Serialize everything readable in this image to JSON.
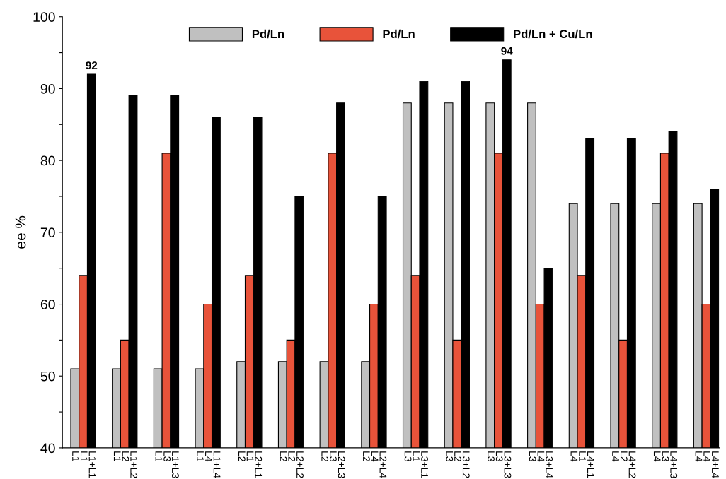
{
  "chart_data": {
    "type": "bar",
    "ylabel": "ee %",
    "categories": [
      "L1",
      "L1",
      "L1+L1",
      null,
      null,
      "L1",
      "L2",
      "L1+L2",
      null,
      null,
      "L1",
      "L3",
      "L1+L3",
      null,
      null,
      "L1",
      "L4",
      "L1+L4",
      null,
      null,
      "L2",
      "L1",
      "L2+L1",
      null,
      null,
      "L2",
      "L2",
      "L2+L2",
      null,
      null,
      "L2",
      "L3",
      "L2+L3",
      null,
      null,
      "L2",
      "L4",
      "L2+L4",
      null,
      null,
      "L3",
      "L1",
      "L3+L1",
      null,
      null,
      "L3",
      "L2",
      "L3+L2",
      null,
      null,
      "L3",
      "L3",
      "L3+L3",
      null,
      null,
      "L3",
      "L4",
      "L3+L4",
      null,
      null,
      "L4",
      "L1",
      "L4+L1",
      null,
      null,
      "L4",
      "L2",
      "L4+L2",
      null,
      null,
      "L4",
      "L3",
      "L4+L3",
      null,
      null,
      "L4",
      "L4",
      "L4+L4"
    ],
    "series": [
      {
        "name": "Pd/Ln",
        "color": "#c0c0c0",
        "values": [
          51,
          null,
          null,
          null,
          null,
          51,
          null,
          null,
          null,
          null,
          51,
          null,
          null,
          null,
          null,
          51,
          null,
          null,
          null,
          null,
          52,
          null,
          null,
          null,
          null,
          52,
          null,
          null,
          null,
          null,
          52,
          null,
          null,
          null,
          null,
          52,
          null,
          null,
          null,
          null,
          88,
          null,
          null,
          null,
          null,
          88,
          null,
          null,
          null,
          null,
          88,
          null,
          null,
          null,
          null,
          88,
          null,
          null,
          null,
          null,
          74,
          null,
          null,
          null,
          null,
          74,
          null,
          null,
          null,
          null,
          74,
          null,
          null,
          null,
          null,
          74,
          null,
          null
        ]
      },
      {
        "name": "Pd/Ln",
        "color": "#e8533a",
        "values": [
          null,
          64,
          null,
          null,
          null,
          null,
          55,
          null,
          null,
          null,
          null,
          81,
          null,
          null,
          null,
          null,
          60,
          null,
          null,
          null,
          null,
          64,
          null,
          null,
          null,
          null,
          55,
          null,
          null,
          null,
          null,
          81,
          null,
          null,
          null,
          null,
          60,
          null,
          null,
          null,
          null,
          64,
          null,
          null,
          null,
          null,
          55,
          null,
          null,
          null,
          null,
          81,
          null,
          null,
          null,
          null,
          60,
          null,
          null,
          null,
          null,
          64,
          null,
          null,
          null,
          null,
          55,
          null,
          null,
          null,
          null,
          81,
          null,
          null,
          null,
          null,
          60,
          null
        ]
      },
      {
        "name": "Pd/Ln + Cu/Ln",
        "color": "#000000",
        "values": [
          null,
          null,
          92,
          null,
          null,
          null,
          null,
          89,
          null,
          null,
          null,
          null,
          89,
          null,
          null,
          null,
          null,
          86,
          null,
          null,
          null,
          null,
          86,
          null,
          null,
          null,
          null,
          75,
          null,
          null,
          null,
          null,
          88,
          null,
          null,
          null,
          null,
          75,
          null,
          null,
          null,
          null,
          91,
          null,
          null,
          null,
          null,
          91,
          null,
          null,
          null,
          null,
          94,
          null,
          null,
          null,
          null,
          65,
          null,
          null,
          null,
          null,
          83,
          null,
          null,
          null,
          null,
          83,
          null,
          null,
          null,
          null,
          84,
          null,
          null,
          null,
          null,
          76
        ],
        "value_labels": [
          null,
          null,
          "92",
          null,
          null,
          null,
          null,
          null,
          null,
          null,
          null,
          null,
          null,
          null,
          null,
          null,
          null,
          null,
          null,
          null,
          null,
          null,
          null,
          null,
          null,
          null,
          null,
          null,
          null,
          null,
          null,
          null,
          null,
          null,
          null,
          null,
          null,
          null,
          null,
          null,
          null,
          null,
          null,
          null,
          null,
          null,
          null,
          null,
          null,
          null,
          null,
          null,
          "94",
          null,
          null,
          null,
          null,
          null,
          null,
          null,
          null,
          null,
          null,
          null,
          null,
          null,
          null,
          null,
          null,
          null,
          null,
          null,
          null,
          null,
          null,
          null,
          null,
          null
        ]
      }
    ],
    "ylim": [
      40,
      100
    ],
    "yticks": [
      40,
      {
        "value": 45,
        "label": null
      },
      50,
      {
        "value": 55,
        "label": null
      },
      60,
      {
        "value": 65,
        "label": null
      },
      70,
      {
        "value": 75,
        "label": null
      },
      80,
      {
        "value": 85,
        "label": null
      },
      90,
      {
        "value": 95,
        "label": null
      },
      100
    ],
    "grid": false,
    "legend": "top"
  }
}
